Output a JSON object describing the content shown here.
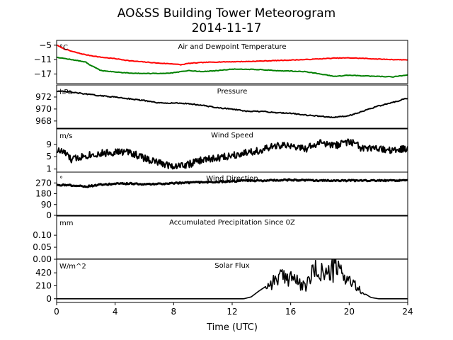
{
  "chart_data": {
    "type": "line",
    "title": "AO&SS Building Tower Meteorogram",
    "subtitle": "2014-11-17",
    "xlabel": "Time (UTC)",
    "xlim": [
      0,
      24
    ],
    "xticks": [
      "0",
      "4",
      "8",
      "12",
      "16",
      "20",
      "24"
    ],
    "panels": [
      {
        "name": "Air and Dewpoint Temperature",
        "unit": "°C",
        "ylim": [
          -21,
          -3
        ],
        "yticks": [
          "−5",
          "−11",
          "−17"
        ],
        "series": [
          {
            "color": "#ff0000",
            "x": [
              0,
              0.5,
              1,
              1.5,
              2,
              3,
              4,
              5,
              6,
              7,
              8,
              8.5,
              9,
              10,
              11,
              12,
              13,
              14,
              15,
              16,
              17,
              18,
              19,
              20,
              21,
              22,
              23,
              24
            ],
            "y": [
              -5,
              -6.5,
              -7.5,
              -8.3,
              -9,
              -10,
              -10.6,
              -11.5,
              -12,
              -12.5,
              -12.8,
              -13.2,
              -12.6,
              -12.2,
              -12,
              -11.9,
              -11.8,
              -11.6,
              -11.4,
              -11.2,
              -11,
              -10.7,
              -10.4,
              -10.3,
              -10.5,
              -10.8,
              -11,
              -11.1
            ]
          },
          {
            "color": "#008000",
            "x": [
              0,
              1,
              2,
              2.2,
              3,
              4,
              5,
              6,
              7,
              8,
              9,
              10,
              11,
              12,
              13,
              14,
              15,
              16,
              17,
              17.5,
              18,
              19,
              20,
              21,
              22,
              23,
              24
            ],
            "y": [
              -10,
              -11,
              -12,
              -13,
              -15.5,
              -16.2,
              -16.6,
              -16.8,
              -16.8,
              -16.5,
              -15.6,
              -16,
              -15.6,
              -15,
              -15,
              -15.2,
              -15.6,
              -15.8,
              -16,
              -16.5,
              -17,
              -18,
              -17.5,
              -17.8,
              -18,
              -18.2,
              -17.4
            ]
          }
        ]
      },
      {
        "name": "Pressure",
        "unit": "hPa",
        "ylim": [
          966.8,
          974
        ],
        "yticks": [
          "972",
          "970",
          "968"
        ],
        "series": [
          {
            "color": "#000000",
            "x": [
              0,
              1,
              2,
              3,
              4,
              5,
              6,
              7,
              8,
              9,
              10,
              11,
              12,
              13,
              14,
              15,
              16,
              17,
              18,
              19,
              20,
              21,
              22,
              23,
              24
            ],
            "y": [
              973,
              972.8,
              972.5,
              972.2,
              972,
              971.7,
              971.4,
              971,
              971,
              970.9,
              970.6,
              970.2,
              970,
              969.6,
              969.6,
              969.4,
              969.3,
              969,
              968.8,
              968.6,
              968.9,
              969.7,
              970.5,
              971.1,
              971.8
            ]
          }
        ]
      },
      {
        "name": "Wind Speed",
        "unit": "m/s",
        "ylim": [
          0,
          14
        ],
        "yticks": [
          "9",
          "5",
          "1"
        ],
        "series": [
          {
            "color": "#000000",
            "x": [
              0,
              0.5,
              1,
              2,
              3,
              4,
              5,
              6,
              7,
              8,
              9,
              10,
              11,
              12,
              13,
              14,
              15,
              16,
              17,
              18,
              19,
              20,
              21,
              22,
              23,
              24
            ],
            "y": [
              7,
              6.5,
              4,
              5.5,
              6,
              6.5,
              6.5,
              4.5,
              3,
              2,
              2.5,
              4,
              4.5,
              5.5,
              6.5,
              7,
              8.5,
              8.5,
              7.5,
              9.5,
              8.5,
              10,
              7.5,
              7.5,
              7,
              7.5
            ]
          }
        ]
      },
      {
        "name": "Wind Direction",
        "unit": "°",
        "ylim": [
          0,
          360
        ],
        "yticks": [
          "270",
          "180",
          "90",
          "0"
        ],
        "series": [
          {
            "color": "#000000",
            "x": [
              0,
              1,
              2,
              3,
              4,
              5,
              6,
              7,
              8,
              9,
              10,
              11,
              12,
              13,
              14,
              15,
              16,
              17,
              18,
              19,
              20,
              21,
              22,
              23,
              24
            ],
            "y": [
              255,
              250,
              240,
              255,
              262,
              265,
              258,
              262,
              268,
              272,
              275,
              278,
              285,
              290,
              288,
              292,
              295,
              292,
              290,
              288,
              290,
              289,
              290,
              291,
              290
            ]
          }
        ]
      },
      {
        "name": "Accumulated Precipitation Since 0Z",
        "unit": "mm",
        "ylim": [
          0,
          0.18
        ],
        "yticks": [
          "0.10",
          "0.05",
          "0.00"
        ],
        "series": [
          {
            "color": "#000000",
            "x": [
              0,
              24
            ],
            "y": [
              0,
              0
            ]
          }
        ]
      },
      {
        "name": "Solar Flux",
        "unit": "W/m^2",
        "ylim": [
          -60,
          640
        ],
        "yticks": [
          "420",
          "210",
          "0"
        ],
        "series": [
          {
            "color": "#000000",
            "x": [
              0,
              12.8,
              13.3,
              13.8,
              14.3,
              14.8,
              15.2,
              15.6,
              16,
              16.5,
              17,
              17.5,
              18,
              18.5,
              19,
              19.5,
              20,
              20.5,
              21,
              21.5,
              22,
              24
            ],
            "y": [
              0,
              0,
              30,
              120,
              200,
              280,
              360,
              320,
              400,
              250,
              180,
              420,
              460,
              380,
              500,
              420,
              300,
              180,
              90,
              20,
              0,
              0
            ]
          }
        ]
      }
    ]
  }
}
